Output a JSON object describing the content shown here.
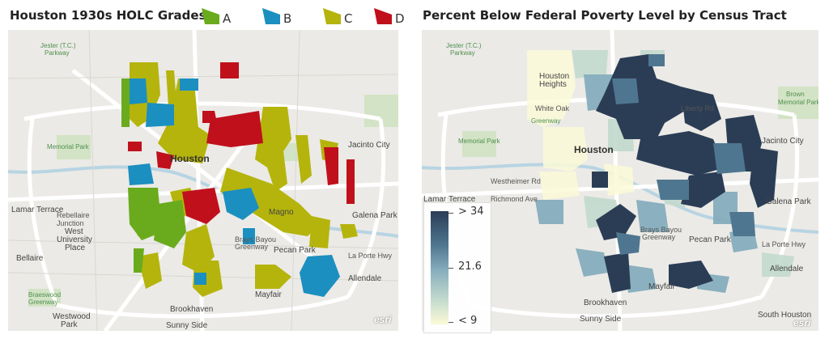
{
  "left_panel": {
    "title": "Houston 1930s HOLC Grades",
    "legend": [
      {
        "label": "A",
        "color": "#6aab1e"
      },
      {
        "label": "B",
        "color": "#1b8fc0"
      },
      {
        "label": "C",
        "color": "#b5b40c"
      },
      {
        "label": "D",
        "color": "#c0101c"
      }
    ],
    "map_labels": {
      "jester": "Jester (T.C.)",
      "parkway": "Parkway",
      "memorial_park": "Memorial Park",
      "houston": "Houston",
      "jacinto_city": "Jacinto City",
      "lamar_terrace": "Lamar Terrace",
      "rebellaire_junction": "Rebellaire\nJunction",
      "west_university_place": "West\nUniversity\nPlace",
      "bellaire": "Bellaire",
      "braeswood_greenway": "Braeswood\nGreenway",
      "westwood_park": "Westwood\nPark",
      "brookhaven": "Brookhaven",
      "sunny_side": "Sunny Side",
      "mayfair": "Mayfair",
      "pecan_park": "Pecan Park",
      "allendale": "Allendale",
      "galena_park": "Galena Park",
      "brays_bayou": "Brays Bayou\nGreenway",
      "magnolia": "Magno",
      "la_porte_hwy": "La Porte Hwy",
      "esri": "esri"
    }
  },
  "right_panel": {
    "title": "Percent Below Federal Poverty Level by Census Tract",
    "colorbar": {
      "max_label": "> 34",
      "mid_label": "21.6",
      "min_label": "< 9",
      "colors": [
        "#2b3d55",
        "#4f7690",
        "#86adbd",
        "#c3dacd",
        "#fbfad7"
      ]
    },
    "map_labels": {
      "jester": "Jester (T.C.)",
      "parkway": "Parkway",
      "houston_heights": "Houston\nHeights",
      "white_oak": "White Oak",
      "greenway": "Greenway",
      "memorial_park": "Memorial Park",
      "houston": "Houston",
      "westheimer_rd": "Westheimer Rd",
      "richmond_ave": "Richmond Ave",
      "lamar_terrace": "Lamar Terrace",
      "jacinto_city": "Jacinto City",
      "galena_park": "Galena Park",
      "brays_bayou": "Brays Bayou\nGreenway",
      "pecan_park": "Pecan Park",
      "allendale": "Allendale",
      "mayfair": "Mayfair",
      "brookhaven": "Brookhaven",
      "sunny_side": "Sunny Side",
      "south_houston": "South Houston",
      "brown_memorial": "Brown\nMemorial Park",
      "liberty_rd": "Liberty Rd",
      "la_porte_hwy": "La Porte Hwy",
      "esri": "esri"
    }
  }
}
